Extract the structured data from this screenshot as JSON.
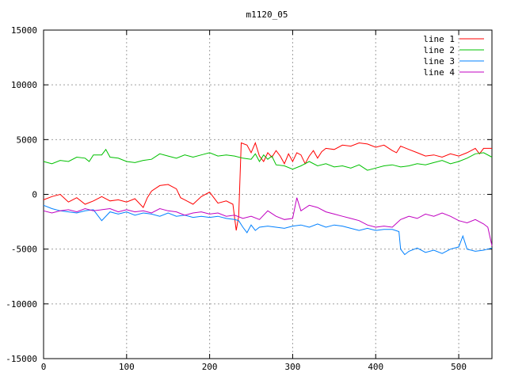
{
  "chart_data": {
    "type": "line",
    "title": "m1120_05",
    "xlabel": "",
    "ylabel": "",
    "xlim": [
      0,
      540
    ],
    "ylim": [
      -15000,
      15000
    ],
    "xticks": [
      0,
      100,
      200,
      300,
      400,
      500
    ],
    "yticks": [
      -15000,
      -10000,
      -5000,
      0,
      5000,
      10000,
      15000
    ],
    "grid": true,
    "legend_position": "top-right",
    "series": [
      {
        "name": "line 1",
        "color": "#ff0000",
        "points": [
          [
            0,
            -500
          ],
          [
            10,
            -200
          ],
          [
            20,
            0
          ],
          [
            30,
            -700
          ],
          [
            40,
            -300
          ],
          [
            50,
            -900
          ],
          [
            60,
            -600
          ],
          [
            70,
            -200
          ],
          [
            80,
            -600
          ],
          [
            90,
            -500
          ],
          [
            100,
            -700
          ],
          [
            110,
            -400
          ],
          [
            120,
            -1200
          ],
          [
            125,
            -300
          ],
          [
            130,
            300
          ],
          [
            140,
            800
          ],
          [
            150,
            900
          ],
          [
            160,
            500
          ],
          [
            165,
            -300
          ],
          [
            170,
            -500
          ],
          [
            180,
            -900
          ],
          [
            190,
            -200
          ],
          [
            200,
            200
          ],
          [
            210,
            -800
          ],
          [
            220,
            -600
          ],
          [
            228,
            -900
          ],
          [
            232,
            -3300
          ],
          [
            235,
            -2000
          ],
          [
            238,
            4700
          ],
          [
            245,
            4500
          ],
          [
            250,
            3800
          ],
          [
            255,
            4700
          ],
          [
            260,
            3500
          ],
          [
            265,
            3000
          ],
          [
            270,
            3800
          ],
          [
            275,
            3400
          ],
          [
            280,
            4000
          ],
          [
            285,
            3500
          ],
          [
            290,
            2800
          ],
          [
            295,
            3700
          ],
          [
            300,
            3000
          ],
          [
            305,
            3800
          ],
          [
            310,
            3600
          ],
          [
            315,
            2800
          ],
          [
            320,
            3500
          ],
          [
            325,
            4000
          ],
          [
            330,
            3300
          ],
          [
            335,
            3900
          ],
          [
            340,
            4200
          ],
          [
            350,
            4100
          ],
          [
            360,
            4500
          ],
          [
            370,
            4400
          ],
          [
            380,
            4700
          ],
          [
            390,
            4600
          ],
          [
            400,
            4300
          ],
          [
            410,
            4500
          ],
          [
            420,
            4000
          ],
          [
            425,
            3800
          ],
          [
            430,
            4400
          ],
          [
            440,
            4100
          ],
          [
            450,
            3800
          ],
          [
            460,
            3500
          ],
          [
            470,
            3600
          ],
          [
            480,
            3400
          ],
          [
            490,
            3700
          ],
          [
            500,
            3500
          ],
          [
            510,
            3800
          ],
          [
            520,
            4200
          ],
          [
            525,
            3700
          ],
          [
            530,
            4200
          ],
          [
            540,
            4200
          ]
        ]
      },
      {
        "name": "line 2",
        "color": "#00c000",
        "points": [
          [
            0,
            3000
          ],
          [
            10,
            2800
          ],
          [
            20,
            3100
          ],
          [
            30,
            3000
          ],
          [
            40,
            3400
          ],
          [
            50,
            3300
          ],
          [
            55,
            3000
          ],
          [
            60,
            3600
          ],
          [
            70,
            3600
          ],
          [
            75,
            4100
          ],
          [
            80,
            3400
          ],
          [
            90,
            3300
          ],
          [
            100,
            3000
          ],
          [
            110,
            2900
          ],
          [
            120,
            3100
          ],
          [
            130,
            3200
          ],
          [
            140,
            3700
          ],
          [
            150,
            3500
          ],
          [
            160,
            3300
          ],
          [
            170,
            3600
          ],
          [
            180,
            3400
          ],
          [
            190,
            3600
          ],
          [
            200,
            3800
          ],
          [
            210,
            3500
          ],
          [
            220,
            3600
          ],
          [
            230,
            3500
          ],
          [
            240,
            3300
          ],
          [
            250,
            3200
          ],
          [
            255,
            3700
          ],
          [
            260,
            3000
          ],
          [
            265,
            3600
          ],
          [
            270,
            3200
          ],
          [
            275,
            3500
          ],
          [
            280,
            2700
          ],
          [
            290,
            2600
          ],
          [
            300,
            2300
          ],
          [
            310,
            2600
          ],
          [
            320,
            3000
          ],
          [
            330,
            2600
          ],
          [
            340,
            2800
          ],
          [
            350,
            2500
          ],
          [
            360,
            2600
          ],
          [
            370,
            2400
          ],
          [
            380,
            2700
          ],
          [
            390,
            2200
          ],
          [
            400,
            2400
          ],
          [
            410,
            2600
          ],
          [
            420,
            2700
          ],
          [
            430,
            2500
          ],
          [
            440,
            2600
          ],
          [
            450,
            2800
          ],
          [
            460,
            2700
          ],
          [
            470,
            2900
          ],
          [
            480,
            3100
          ],
          [
            490,
            2800
          ],
          [
            500,
            3000
          ],
          [
            510,
            3300
          ],
          [
            520,
            3700
          ],
          [
            530,
            3800
          ],
          [
            540,
            3400
          ]
        ]
      },
      {
        "name": "line 3",
        "color": "#0080ff",
        "points": [
          [
            0,
            -1000
          ],
          [
            10,
            -1300
          ],
          [
            20,
            -1500
          ],
          [
            30,
            -1600
          ],
          [
            40,
            -1700
          ],
          [
            50,
            -1500
          ],
          [
            60,
            -1400
          ],
          [
            70,
            -2400
          ],
          [
            80,
            -1600
          ],
          [
            90,
            -1800
          ],
          [
            100,
            -1600
          ],
          [
            110,
            -1900
          ],
          [
            120,
            -1700
          ],
          [
            130,
            -1800
          ],
          [
            140,
            -2000
          ],
          [
            150,
            -1700
          ],
          [
            160,
            -2000
          ],
          [
            170,
            -1900
          ],
          [
            180,
            -2100
          ],
          [
            190,
            -2000
          ],
          [
            200,
            -2100
          ],
          [
            210,
            -2000
          ],
          [
            220,
            -2200
          ],
          [
            230,
            -2300
          ],
          [
            235,
            -2400
          ],
          [
            240,
            -3000
          ],
          [
            245,
            -3500
          ],
          [
            250,
            -2800
          ],
          [
            255,
            -3300
          ],
          [
            260,
            -3000
          ],
          [
            270,
            -2900
          ],
          [
            280,
            -3000
          ],
          [
            290,
            -3100
          ],
          [
            300,
            -2900
          ],
          [
            310,
            -2800
          ],
          [
            320,
            -3000
          ],
          [
            330,
            -2700
          ],
          [
            340,
            -3000
          ],
          [
            350,
            -2800
          ],
          [
            360,
            -2900
          ],
          [
            370,
            -3100
          ],
          [
            380,
            -3300
          ],
          [
            390,
            -3100
          ],
          [
            400,
            -3300
          ],
          [
            410,
            -3200
          ],
          [
            420,
            -3200
          ],
          [
            428,
            -3400
          ],
          [
            430,
            -5000
          ],
          [
            435,
            -5500
          ],
          [
            440,
            -5200
          ],
          [
            450,
            -4900
          ],
          [
            460,
            -5300
          ],
          [
            470,
            -5100
          ],
          [
            480,
            -5400
          ],
          [
            490,
            -5000
          ],
          [
            500,
            -4800
          ],
          [
            505,
            -3800
          ],
          [
            510,
            -5000
          ],
          [
            520,
            -5200
          ],
          [
            530,
            -5100
          ],
          [
            540,
            -4900
          ]
        ]
      },
      {
        "name": "line 4",
        "color": "#c000c0",
        "points": [
          [
            0,
            -1500
          ],
          [
            10,
            -1700
          ],
          [
            20,
            -1500
          ],
          [
            30,
            -1400
          ],
          [
            40,
            -1600
          ],
          [
            50,
            -1300
          ],
          [
            60,
            -1500
          ],
          [
            70,
            -1400
          ],
          [
            80,
            -1300
          ],
          [
            90,
            -1600
          ],
          [
            100,
            -1400
          ],
          [
            110,
            -1600
          ],
          [
            120,
            -1500
          ],
          [
            130,
            -1700
          ],
          [
            140,
            -1300
          ],
          [
            150,
            -1500
          ],
          [
            160,
            -1600
          ],
          [
            170,
            -1900
          ],
          [
            180,
            -1700
          ],
          [
            190,
            -1600
          ],
          [
            200,
            -1800
          ],
          [
            210,
            -1700
          ],
          [
            220,
            -2000
          ],
          [
            230,
            -1900
          ],
          [
            240,
            -2200
          ],
          [
            250,
            -2000
          ],
          [
            260,
            -2300
          ],
          [
            270,
            -1500
          ],
          [
            280,
            -2000
          ],
          [
            290,
            -2300
          ],
          [
            300,
            -2200
          ],
          [
            305,
            -300
          ],
          [
            310,
            -1500
          ],
          [
            320,
            -1000
          ],
          [
            330,
            -1200
          ],
          [
            340,
            -1600
          ],
          [
            350,
            -1800
          ],
          [
            360,
            -2000
          ],
          [
            370,
            -2200
          ],
          [
            380,
            -2400
          ],
          [
            390,
            -2800
          ],
          [
            400,
            -3000
          ],
          [
            410,
            -2900
          ],
          [
            420,
            -3000
          ],
          [
            430,
            -2300
          ],
          [
            440,
            -2000
          ],
          [
            450,
            -2200
          ],
          [
            460,
            -1800
          ],
          [
            470,
            -2000
          ],
          [
            480,
            -1700
          ],
          [
            490,
            -2000
          ],
          [
            500,
            -2400
          ],
          [
            510,
            -2600
          ],
          [
            520,
            -2300
          ],
          [
            530,
            -2700
          ],
          [
            535,
            -3000
          ],
          [
            540,
            -4700
          ]
        ]
      }
    ]
  }
}
